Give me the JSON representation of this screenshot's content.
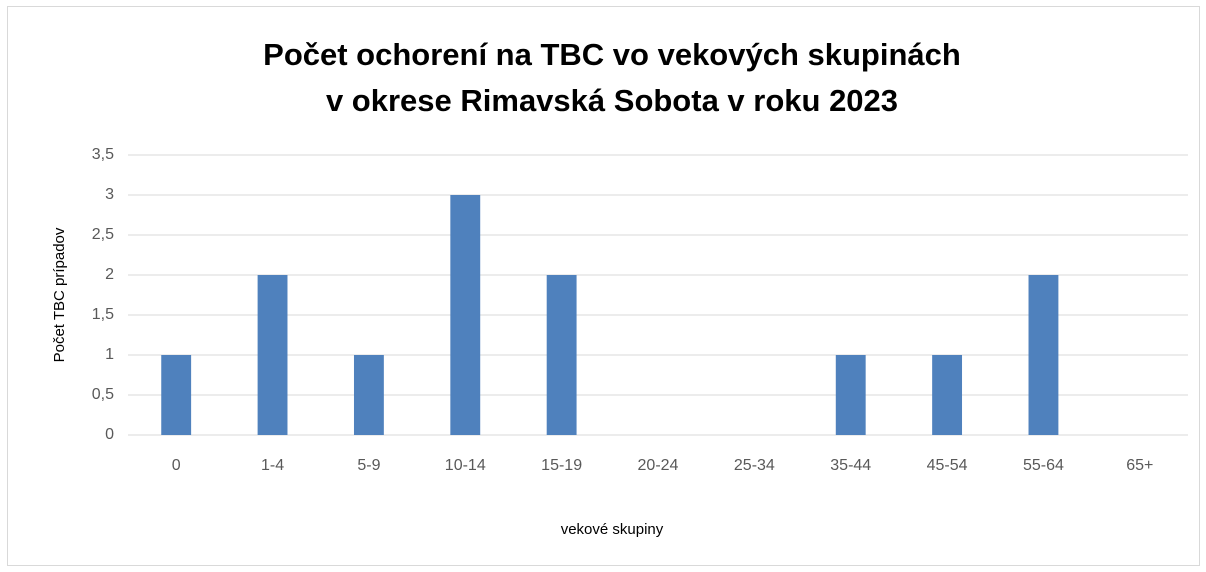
{
  "chart_data": {
    "type": "bar",
    "title": [
      "Počet ochorení na TBC vo vekových skupinách",
      "v okrese Rimavská Sobota v roku 2023"
    ],
    "x_label": "vekové skupiny",
    "y_label": "Počet TBC prípadov",
    "categories": [
      "0",
      "1-4",
      "5-9",
      "10-14",
      "15-19",
      "20-24",
      "25-34",
      "35-44",
      "45-54",
      "55-64",
      "65+"
    ],
    "values": [
      1,
      2,
      1,
      3,
      2,
      0,
      0,
      1,
      1,
      2,
      0
    ],
    "color": "#4f81bd",
    "ylim": [
      0,
      3.5
    ],
    "yticks": [
      0,
      {
        "value": 0.5,
        "label": "0,5"
      },
      1,
      {
        "value": 1.5,
        "label": "1,5"
      },
      2,
      {
        "value": 2.5,
        "label": "2,5"
      },
      3,
      {
        "value": 3.5,
        "label": "3,5"
      }
    ],
    "grid": true
  }
}
